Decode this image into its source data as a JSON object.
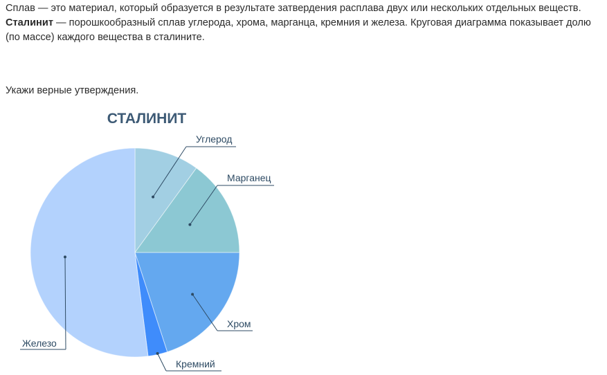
{
  "text": {
    "intro_1": "Сплав — это материал, который образуется в результате затвердения расплава двух или нескольких отдельных веществ. ",
    "intro_bold": "Сталинит",
    "intro_2": " — порошкообразный сплав углерода, хрома, марганца, кремния и железа. Круговая диаграмма показывает долю (по массе) каждого вещества в сталините.",
    "instruction": "Укажи верные утверждения."
  },
  "chart_data": {
    "type": "pie",
    "title": "СТАЛИНИТ",
    "slices": [
      {
        "label": "Углерод",
        "value": 10,
        "color": "#a2cfe3"
      },
      {
        "label": "Марганец",
        "value": 15,
        "color": "#8cc8d3"
      },
      {
        "label": "Хром",
        "value": 20,
        "color": "#64a8ef"
      },
      {
        "label": "Кремний",
        "value": 3,
        "color": "#3f8cfb"
      },
      {
        "label": "Железо",
        "value": 52,
        "color": "#b3d2fd"
      }
    ],
    "start_angle": "12 o'clock",
    "direction": "clockwise",
    "legend": "none"
  }
}
